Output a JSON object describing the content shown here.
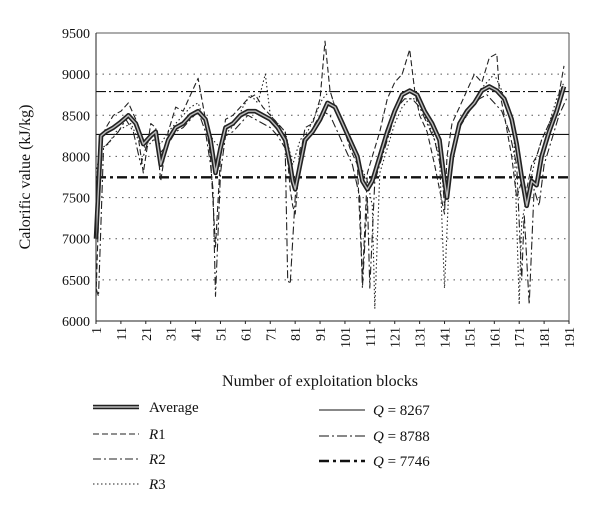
{
  "chart_data": {
    "type": "line",
    "xlabel": "Number of exploitation blocks",
    "ylabel": "Calorific value (kJ/kg)",
    "xlim": [
      1,
      191
    ],
    "ylim": [
      6000,
      9500
    ],
    "x_ticks": [
      "1",
      "11",
      "21",
      "31",
      "41",
      "51",
      "61",
      "71",
      "81",
      "91",
      "101",
      "111",
      "121",
      "131",
      "141",
      "151",
      "161",
      "171",
      "181",
      "191"
    ],
    "y_ticks": [
      "6000",
      "6500",
      "7000",
      "7500",
      "8000",
      "8500",
      "9000",
      "9500"
    ],
    "grid": "horizontal dotted",
    "legend": [
      {
        "key": "avg",
        "label": "Average"
      },
      {
        "key": "r1",
        "label": "R1"
      },
      {
        "key": "r2",
        "label": "R2"
      },
      {
        "key": "r3",
        "label": "R3"
      },
      {
        "key": "q1",
        "prefix": "Q",
        "suffix": " = 8267"
      },
      {
        "key": "q2",
        "prefix": "Q",
        "suffix": " = 8788"
      },
      {
        "key": "q3",
        "prefix": "Q",
        "suffix": " = 7746"
      }
    ],
    "hlines": [
      {
        "key": "q1",
        "y": 8267
      },
      {
        "key": "q2",
        "y": 8788
      },
      {
        "key": "q3",
        "y": 7746
      }
    ],
    "series": [
      {
        "key": "avg",
        "name": "Average",
        "x": [
          1,
          3,
          5,
          8,
          11,
          14,
          17,
          20,
          23,
          25,
          27,
          30,
          33,
          36,
          39,
          42,
          45,
          47,
          49,
          51,
          53,
          56,
          59,
          62,
          65,
          68,
          71,
          74,
          77,
          79,
          80,
          81,
          83,
          85,
          88,
          91,
          94,
          97,
          100,
          103,
          106,
          108,
          110,
          112,
          115,
          118,
          121,
          124,
          127,
          130,
          133,
          136,
          139,
          141,
          142,
          144,
          147,
          150,
          153,
          156,
          159,
          162,
          165,
          168,
          170,
          172,
          174,
          176,
          178,
          180,
          183,
          186,
          189
        ],
        "y": [
          7000,
          8250,
          8300,
          8350,
          8420,
          8500,
          8400,
          8150,
          8250,
          8300,
          7900,
          8200,
          8350,
          8400,
          8500,
          8550,
          8450,
          8200,
          7800,
          8100,
          8350,
          8400,
          8500,
          8550,
          8550,
          8500,
          8450,
          8350,
          8200,
          7900,
          7700,
          7600,
          7900,
          8200,
          8300,
          8450,
          8650,
          8600,
          8400,
          8200,
          8000,
          7700,
          7600,
          7700,
          8000,
          8300,
          8550,
          8750,
          8800,
          8750,
          8550,
          8400,
          8200,
          7700,
          7500,
          8000,
          8400,
          8550,
          8650,
          8800,
          8850,
          8800,
          8700,
          8450,
          8150,
          7750,
          7400,
          7700,
          7650,
          8000,
          8300,
          8550,
          8850
        ]
      },
      {
        "key": "r1",
        "name": "R1",
        "x": [
          1,
          3,
          5,
          8,
          11,
          14,
          17,
          20,
          23,
          25,
          27,
          30,
          33,
          36,
          39,
          42,
          45,
          47,
          49,
          51,
          53,
          56,
          59,
          62,
          65,
          68,
          71,
          74,
          77,
          79,
          80,
          81,
          83,
          85,
          88,
          91,
          93,
          95,
          97,
          100,
          103,
          106,
          108,
          110,
          112,
          115,
          118,
          121,
          124,
          127,
          129,
          131,
          134,
          137,
          139,
          141,
          142,
          144,
          147,
          150,
          153,
          156,
          159,
          162,
          163,
          165,
          168,
          170,
          172,
          174,
          176,
          178,
          180,
          183,
          186,
          189
        ],
        "y": [
          6300,
          8200,
          8350,
          8500,
          8550,
          8650,
          8450,
          7800,
          8400,
          8350,
          7700,
          8300,
          8600,
          8550,
          8750,
          8950,
          8450,
          8000,
          6900,
          8000,
          8450,
          8500,
          8600,
          8700,
          8750,
          8600,
          8500,
          8400,
          8300,
          7600,
          7400,
          7300,
          8000,
          8350,
          8400,
          8700,
          9400,
          8800,
          8600,
          8400,
          8100,
          7900,
          6500,
          7800,
          8000,
          8300,
          8700,
          8900,
          9000,
          9300,
          8800,
          8500,
          8300,
          7900,
          7600,
          7300,
          8000,
          8400,
          8600,
          8800,
          9000,
          8900,
          9200,
          9250,
          8800,
          8500,
          8000,
          7500,
          7700,
          7600,
          7900,
          8000,
          8200,
          8400,
          8600,
          9100
        ]
      },
      {
        "key": "r2",
        "name": "R2",
        "x": [
          1,
          2,
          4,
          7,
          10,
          13,
          16,
          19,
          22,
          25,
          27,
          30,
          33,
          36,
          39,
          42,
          45,
          47,
          48,
          49,
          51,
          53,
          56,
          59,
          62,
          65,
          68,
          71,
          74,
          77,
          78,
          79,
          81,
          83,
          86,
          89,
          92,
          95,
          98,
          101,
          104,
          107,
          108,
          110,
          111,
          113,
          116,
          119,
          122,
          125,
          128,
          131,
          134,
          137,
          140,
          141,
          143,
          146,
          149,
          152,
          155,
          158,
          161,
          164,
          167,
          170,
          172,
          173,
          175,
          177,
          179,
          181,
          184,
          187,
          190
        ],
        "y": [
          6400,
          6300,
          8100,
          8200,
          8300,
          8450,
          8300,
          7900,
          8200,
          8200,
          8050,
          8150,
          8300,
          8350,
          8450,
          8550,
          8300,
          7900,
          7600,
          6300,
          7800,
          8250,
          8300,
          8400,
          8500,
          8450,
          8400,
          8350,
          8250,
          8100,
          6500,
          6450,
          7500,
          8100,
          8200,
          8400,
          8550,
          8500,
          8300,
          8100,
          7900,
          7500,
          6400,
          7500,
          6400,
          7700,
          8000,
          8300,
          8600,
          8700,
          8700,
          8600,
          8400,
          8200,
          7800,
          7400,
          7900,
          8300,
          8450,
          8600,
          8700,
          8750,
          8650,
          8550,
          8300,
          7900,
          6500,
          7300,
          6200,
          7600,
          7400,
          7900,
          8200,
          8500,
          8700
        ]
      },
      {
        "key": "r3",
        "name": "R3",
        "x": [
          1,
          3,
          6,
          9,
          12,
          15,
          18,
          21,
          24,
          27,
          30,
          33,
          36,
          39,
          42,
          45,
          48,
          51,
          54,
          57,
          60,
          63,
          66,
          69,
          71,
          74,
          77,
          80,
          83,
          86,
          89,
          92,
          95,
          98,
          101,
          104,
          107,
          110,
          112,
          113,
          115,
          118,
          121,
          124,
          127,
          130,
          133,
          136,
          139,
          141,
          143,
          146,
          149,
          152,
          155,
          158,
          161,
          164,
          167,
          169,
          171,
          172,
          174,
          177,
          180,
          183,
          186,
          189
        ],
        "y": [
          7800,
          8100,
          8150,
          8300,
          8350,
          8400,
          8200,
          8100,
          8200,
          8150,
          8300,
          8400,
          8500,
          8600,
          8650,
          8400,
          8200,
          8100,
          8300,
          8400,
          8600,
          8750,
          8650,
          9000,
          8500,
          8400,
          8300,
          7900,
          8200,
          8300,
          8500,
          8700,
          8800,
          8500,
          8300,
          8100,
          7900,
          7700,
          7400,
          6150,
          7800,
          8100,
          8400,
          8600,
          8700,
          8700,
          8500,
          8300,
          8000,
          6400,
          7800,
          8300,
          8500,
          8600,
          8800,
          8900,
          9000,
          8800,
          8500,
          8200,
          6200,
          7200,
          7500,
          7900,
          8200,
          8400,
          8700,
          8900
        ]
      }
    ]
  }
}
